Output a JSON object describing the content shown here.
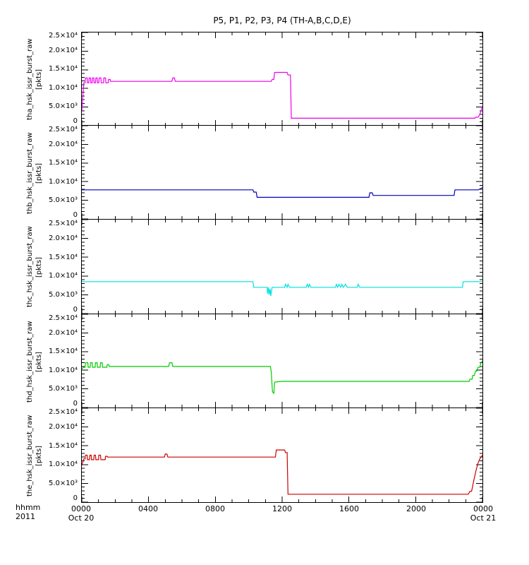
{
  "title": "P5, P1, P2, P3, P4 (TH-A,B,C,D,E)",
  "axes": {
    "y_ticks": [
      "2.5×10⁴",
      "2.0×10⁴",
      "1.5×10⁴",
      "1.0×10⁴",
      "5.0×10³",
      "0"
    ],
    "x_ticks": [
      "0000",
      "0400",
      "0800",
      "1200",
      "1600",
      "2000",
      "0000"
    ],
    "x_date_start": "Oct 20",
    "x_date_end": "Oct 21",
    "corner_time_format": "hhmm",
    "corner_year": "2011"
  },
  "chart_data": {
    "type": "line",
    "title": "P5, P1, P2, P3, P4 (TH-A,B,C,D,E)",
    "x_axis": {
      "label_format": "hhmm",
      "year": "2011",
      "start": "Oct 20 0000",
      "end": "Oct 21 0000",
      "range_hours": [
        0,
        24
      ],
      "major_tick_hours": 4,
      "minor_tick_hours": 1,
      "tick_labels": [
        "0000",
        "0400",
        "0800",
        "1200",
        "1600",
        "2000",
        "0000"
      ]
    },
    "y_axis": {
      "unit": "pkts",
      "range": [
        0,
        25000
      ],
      "major_tick": 5000,
      "minor_tick": 1000,
      "tick_labels": [
        "0",
        "5.0×10³",
        "1.0×10⁴",
        "1.5×10⁴",
        "2.0×10⁴",
        "2.5×10⁴"
      ]
    },
    "panels": [
      {
        "name": "tha_hsk_issr_burst_raw",
        "unit": "[pkts]",
        "color": "#ee00ee",
        "points": [
          [
            0,
            4000
          ],
          [
            0.12,
            11500
          ],
          [
            0.2,
            11500
          ],
          [
            0.22,
            12800
          ],
          [
            0.32,
            12800
          ],
          [
            0.34,
            11500
          ],
          [
            0.42,
            11500
          ],
          [
            0.44,
            12800
          ],
          [
            0.52,
            12800
          ],
          [
            0.54,
            11500
          ],
          [
            0.62,
            11500
          ],
          [
            0.64,
            12800
          ],
          [
            0.72,
            12800
          ],
          [
            0.74,
            11500
          ],
          [
            0.82,
            11500
          ],
          [
            0.84,
            12800
          ],
          [
            0.92,
            12800
          ],
          [
            0.94,
            11500
          ],
          [
            1.02,
            11500
          ],
          [
            1.04,
            12800
          ],
          [
            1.14,
            12800
          ],
          [
            1.16,
            11500
          ],
          [
            1.3,
            11500
          ],
          [
            1.32,
            12800
          ],
          [
            1.42,
            12800
          ],
          [
            1.44,
            11500
          ],
          [
            1.58,
            11500
          ],
          [
            1.6,
            12400
          ],
          [
            1.7,
            12400
          ],
          [
            1.72,
            11900
          ],
          [
            5.4,
            11900
          ],
          [
            5.45,
            12800
          ],
          [
            5.55,
            12800
          ],
          [
            5.6,
            11900
          ],
          [
            11.35,
            11900
          ],
          [
            11.4,
            12400
          ],
          [
            11.5,
            12400
          ],
          [
            11.55,
            14300
          ],
          [
            12.3,
            14300
          ],
          [
            12.35,
            13600
          ],
          [
            12.5,
            13600
          ],
          [
            12.55,
            2000
          ],
          [
            23.55,
            2000
          ],
          [
            23.6,
            2300
          ],
          [
            23.75,
            2300
          ],
          [
            23.85,
            3200
          ],
          [
            24,
            5200
          ]
        ]
      },
      {
        "name": "thb_hsk_issr_burst_raw",
        "unit": "[pkts]",
        "color": "#0000bb",
        "points": [
          [
            0,
            7800
          ],
          [
            10.25,
            7800
          ],
          [
            10.3,
            7200
          ],
          [
            10.45,
            7200
          ],
          [
            10.5,
            5800
          ],
          [
            17.2,
            5800
          ],
          [
            17.25,
            7000
          ],
          [
            17.4,
            7000
          ],
          [
            17.45,
            6300
          ],
          [
            22.3,
            6300
          ],
          [
            22.35,
            7800
          ],
          [
            23.75,
            7800
          ],
          [
            24,
            8400
          ]
        ]
      },
      {
        "name": "thc_hsk_issr_burst_raw",
        "unit": "[pkts]",
        "color": "#00e0e0",
        "points": [
          [
            0,
            8500
          ],
          [
            10.25,
            8500
          ],
          [
            10.3,
            7000
          ],
          [
            11.1,
            7000
          ],
          [
            11.13,
            5300
          ],
          [
            11.18,
            7000
          ],
          [
            11.22,
            5000
          ],
          [
            11.28,
            6600
          ],
          [
            11.32,
            4700
          ],
          [
            11.4,
            7000
          ],
          [
            12.15,
            7000
          ],
          [
            12.2,
            7800
          ],
          [
            12.3,
            7000
          ],
          [
            12.35,
            7800
          ],
          [
            12.45,
            7000
          ],
          [
            13.45,
            7000
          ],
          [
            13.5,
            7800
          ],
          [
            13.58,
            7000
          ],
          [
            13.64,
            7800
          ],
          [
            13.72,
            7000
          ],
          [
            15.2,
            7000
          ],
          [
            15.25,
            7800
          ],
          [
            15.33,
            7000
          ],
          [
            15.4,
            7800
          ],
          [
            15.5,
            7000
          ],
          [
            15.58,
            7800
          ],
          [
            15.66,
            7000
          ],
          [
            15.8,
            7800
          ],
          [
            15.9,
            7000
          ],
          [
            16.5,
            7000
          ],
          [
            16.55,
            7800
          ],
          [
            16.65,
            7000
          ],
          [
            22.8,
            7000
          ],
          [
            22.85,
            8500
          ],
          [
            24,
            8500
          ]
        ]
      },
      {
        "name": "thd_hsk_issr_burst_raw",
        "unit": "[pkts]",
        "color": "#00cc00",
        "points": [
          [
            0,
            10300
          ],
          [
            0.1,
            10800
          ],
          [
            0.2,
            10800
          ],
          [
            0.22,
            12000
          ],
          [
            0.36,
            12000
          ],
          [
            0.38,
            10800
          ],
          [
            0.5,
            10800
          ],
          [
            0.52,
            12000
          ],
          [
            0.62,
            12000
          ],
          [
            0.64,
            10800
          ],
          [
            0.8,
            10800
          ],
          [
            0.82,
            12000
          ],
          [
            0.92,
            12000
          ],
          [
            0.94,
            10800
          ],
          [
            1.1,
            10800
          ],
          [
            1.12,
            12000
          ],
          [
            1.22,
            12000
          ],
          [
            1.24,
            10800
          ],
          [
            1.5,
            10800
          ],
          [
            1.52,
            11500
          ],
          [
            1.62,
            11500
          ],
          [
            1.64,
            11000
          ],
          [
            5.2,
            11000
          ],
          [
            5.25,
            12000
          ],
          [
            5.4,
            12000
          ],
          [
            5.45,
            11000
          ],
          [
            11.3,
            11000
          ],
          [
            11.35,
            9500
          ],
          [
            11.42,
            4200
          ],
          [
            11.5,
            3800
          ],
          [
            11.55,
            6800
          ],
          [
            11.7,
            6900
          ],
          [
            12,
            7000
          ],
          [
            23.2,
            7000
          ],
          [
            23.25,
            7600
          ],
          [
            23.38,
            7600
          ],
          [
            23.42,
            8600
          ],
          [
            23.52,
            8600
          ],
          [
            23.58,
            9800
          ],
          [
            23.68,
            9800
          ],
          [
            23.74,
            10800
          ],
          [
            23.84,
            10800
          ],
          [
            23.9,
            11800
          ],
          [
            24,
            12500
          ]
        ]
      },
      {
        "name": "the_hsk_issr_burst_raw",
        "unit": "[pkts]",
        "color": "#cc0000",
        "points": [
          [
            0,
            9800
          ],
          [
            0.12,
            11500
          ],
          [
            0.2,
            11500
          ],
          [
            0.22,
            12500
          ],
          [
            0.32,
            12500
          ],
          [
            0.34,
            11300
          ],
          [
            0.46,
            11300
          ],
          [
            0.48,
            12500
          ],
          [
            0.56,
            12500
          ],
          [
            0.58,
            11300
          ],
          [
            0.72,
            11300
          ],
          [
            0.74,
            12500
          ],
          [
            0.82,
            12500
          ],
          [
            0.84,
            11300
          ],
          [
            1.0,
            11300
          ],
          [
            1.02,
            12500
          ],
          [
            1.12,
            12500
          ],
          [
            1.14,
            11300
          ],
          [
            1.4,
            11300
          ],
          [
            1.42,
            12200
          ],
          [
            1.52,
            12200
          ],
          [
            1.54,
            12000
          ],
          [
            4.95,
            12000
          ],
          [
            5.0,
            12800
          ],
          [
            5.1,
            12800
          ],
          [
            5.15,
            12000
          ],
          [
            11.6,
            12000
          ],
          [
            11.65,
            13900
          ],
          [
            12.15,
            13900
          ],
          [
            12.2,
            13200
          ],
          [
            12.3,
            13200
          ],
          [
            12.35,
            2100
          ],
          [
            23.15,
            2100
          ],
          [
            23.25,
            2900
          ],
          [
            23.35,
            2900
          ],
          [
            23.42,
            4500
          ],
          [
            23.52,
            6500
          ],
          [
            23.62,
            8500
          ],
          [
            23.72,
            10200
          ],
          [
            23.84,
            11500
          ],
          [
            24,
            12500
          ]
        ]
      }
    ]
  }
}
